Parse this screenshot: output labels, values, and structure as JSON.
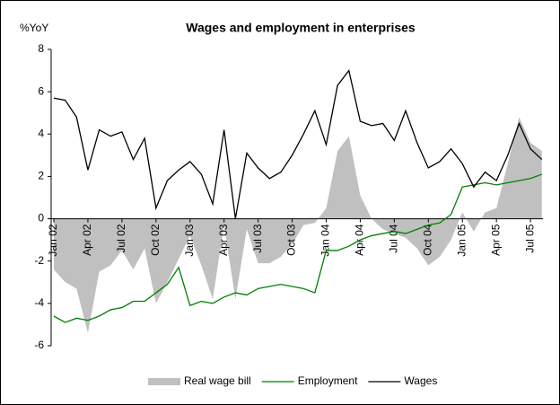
{
  "chart_data": {
    "type": "line",
    "title": "Wages and employment in enterprises",
    "y_label": "%YoY",
    "categories": [
      "Jan 02",
      null,
      null,
      "Apr 02",
      null,
      null,
      "Jul 02",
      null,
      null,
      "Oct 02",
      null,
      null,
      "Jan 03",
      null,
      null,
      "Apr 03",
      null,
      null,
      "Jul 03",
      null,
      null,
      "Oct 03",
      null,
      null,
      "Jan 04",
      null,
      null,
      "Apr 04",
      null,
      null,
      "Jul 04",
      null,
      null,
      "Oct 04",
      null,
      null,
      "Jan 05",
      null,
      null,
      "Apr 05",
      null,
      null,
      "Jul 05",
      null
    ],
    "series": [
      {
        "name": "Real wage bill",
        "kind": "area",
        "color": "#c0c0c0",
        "values": [
          -2.4,
          -3.0,
          -3.3,
          -5.4,
          -2.5,
          -2.2,
          -1.5,
          -2.4,
          -1.4,
          -4.0,
          -3.0,
          -1.9,
          -0.8,
          -2.2,
          -3.8,
          -0.3,
          -3.8,
          -0.5,
          -2.1,
          -2.1,
          -1.8,
          -1.2,
          -0.3,
          -0.2,
          0.5,
          3.2,
          3.9,
          1.1,
          0.0,
          -0.5,
          -0.7,
          -0.9,
          -1.4,
          -2.2,
          -1.8,
          -1.0,
          0.3,
          -0.6,
          0.3,
          0.5,
          2.6,
          4.8,
          3.6,
          3.2
        ]
      },
      {
        "name": "Employment",
        "kind": "line",
        "color": "#008000",
        "values": [
          -4.6,
          -4.9,
          -4.7,
          -4.8,
          -4.6,
          -4.3,
          -4.2,
          -3.9,
          -3.9,
          -3.5,
          -3.1,
          -2.3,
          -4.1,
          -3.9,
          -4.0,
          -3.7,
          -3.5,
          -3.6,
          -3.3,
          -3.2,
          -3.1,
          -3.2,
          -3.3,
          -3.5,
          -1.5,
          -1.5,
          -1.3,
          -1.0,
          -0.8,
          -0.7,
          -0.6,
          -0.7,
          -0.5,
          -0.3,
          -0.2,
          0.2,
          1.5,
          1.6,
          1.7,
          1.6,
          1.7,
          1.8,
          1.9,
          2.1
        ]
      },
      {
        "name": "Wages",
        "kind": "line",
        "color": "#000000",
        "values": [
          5.7,
          5.6,
          4.8,
          2.3,
          4.2,
          3.9,
          4.1,
          2.8,
          3.8,
          0.5,
          1.8,
          2.3,
          2.7,
          2.1,
          0.7,
          4.2,
          0.0,
          3.1,
          2.4,
          1.9,
          2.2,
          3.0,
          4.0,
          5.1,
          3.5,
          6.3,
          7.0,
          4.6,
          4.4,
          4.5,
          3.7,
          5.1,
          3.6,
          2.4,
          2.7,
          3.3,
          2.6,
          1.5,
          2.2,
          1.8,
          3.0,
          4.5,
          3.3,
          2.8
        ]
      }
    ],
    "ylim": [
      -6,
      8
    ],
    "yticks": [
      -6,
      -4,
      -2,
      0,
      2,
      4,
      6,
      8
    ],
    "legend": "bottom"
  }
}
